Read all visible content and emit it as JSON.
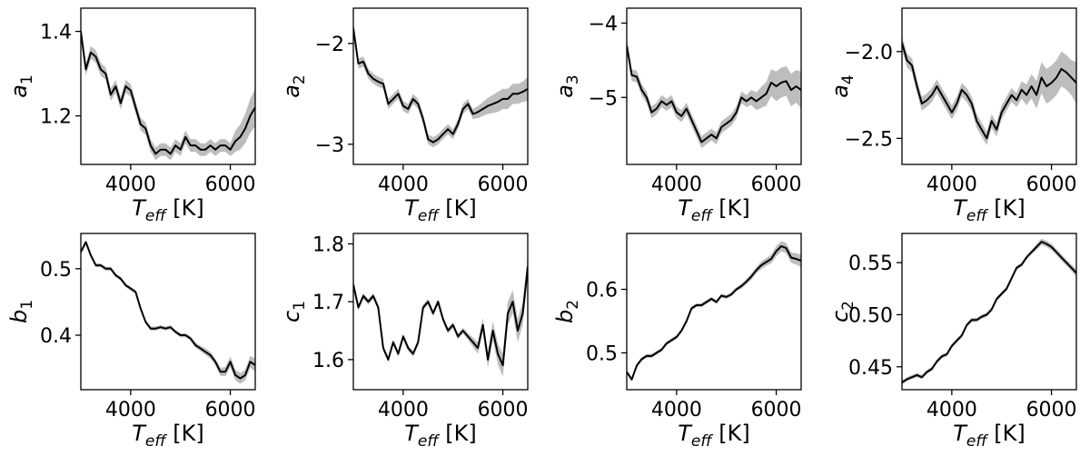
{
  "chart_data": [
    {
      "type": "line",
      "ylabel": "a",
      "ylabel_sub": "1",
      "xlabel": "T",
      "xlabel_sub": "eff",
      "xlabel_unit": " [K]",
      "xlim": [
        3000,
        6500
      ],
      "ylim": [
        1.085,
        1.455
      ],
      "xticks": [
        4000,
        6000
      ],
      "yticks": [
        1.2,
        1.4
      ],
      "ytick_labels": [
        "1.2",
        "1.4"
      ],
      "x": [
        3000,
        3100,
        3200,
        3300,
        3400,
        3500,
        3600,
        3700,
        3800,
        3900,
        4000,
        4100,
        4200,
        4300,
        4400,
        4500,
        4600,
        4700,
        4800,
        4900,
        5000,
        5100,
        5200,
        5300,
        5400,
        5500,
        5600,
        5700,
        5800,
        5900,
        6000,
        6100,
        6200,
        6300,
        6400,
        6500
      ],
      "y": [
        1.4,
        1.31,
        1.35,
        1.34,
        1.31,
        1.3,
        1.25,
        1.27,
        1.23,
        1.27,
        1.26,
        1.22,
        1.18,
        1.17,
        1.13,
        1.11,
        1.12,
        1.12,
        1.11,
        1.13,
        1.12,
        1.15,
        1.13,
        1.13,
        1.12,
        1.12,
        1.13,
        1.12,
        1.13,
        1.13,
        1.12,
        1.14,
        1.15,
        1.17,
        1.2,
        1.22
      ],
      "err": [
        0.015,
        0.015,
        0.015,
        0.015,
        0.015,
        0.015,
        0.015,
        0.015,
        0.015,
        0.015,
        0.015,
        0.015,
        0.015,
        0.015,
        0.015,
        0.015,
        0.015,
        0.015,
        0.015,
        0.015,
        0.015,
        0.015,
        0.015,
        0.015,
        0.015,
        0.015,
        0.015,
        0.015,
        0.015,
        0.015,
        0.015,
        0.025,
        0.03,
        0.035,
        0.04,
        0.045
      ]
    },
    {
      "type": "line",
      "ylabel": "a",
      "ylabel_sub": "2",
      "xlabel": "T",
      "xlabel_sub": "eff",
      "xlabel_unit": " [K]",
      "xlim": [
        3000,
        6500
      ],
      "ylim": [
        -3.2,
        -1.65
      ],
      "xticks": [
        4000,
        6000
      ],
      "yticks": [
        -3,
        -2
      ],
      "ytick_labels": [
        "−3",
        "−2"
      ],
      "x": [
        3000,
        3100,
        3200,
        3300,
        3400,
        3500,
        3600,
        3700,
        3800,
        3900,
        4000,
        4100,
        4200,
        4300,
        4400,
        4500,
        4600,
        4700,
        4800,
        4900,
        5000,
        5100,
        5200,
        5300,
        5400,
        5500,
        5600,
        5700,
        5800,
        5900,
        6000,
        6100,
        6200,
        6300,
        6400,
        6500
      ],
      "y": [
        -1.85,
        -2.2,
        -2.18,
        -2.3,
        -2.35,
        -2.38,
        -2.4,
        -2.6,
        -2.55,
        -2.5,
        -2.62,
        -2.65,
        -2.55,
        -2.6,
        -2.75,
        -2.95,
        -2.98,
        -2.95,
        -2.9,
        -2.85,
        -2.9,
        -2.8,
        -2.65,
        -2.6,
        -2.7,
        -2.68,
        -2.65,
        -2.62,
        -2.6,
        -2.58,
        -2.55,
        -2.55,
        -2.5,
        -2.5,
        -2.48,
        -2.45
      ],
      "err": [
        0.05,
        0.05,
        0.05,
        0.05,
        0.05,
        0.05,
        0.05,
        0.05,
        0.05,
        0.05,
        0.05,
        0.05,
        0.05,
        0.05,
        0.05,
        0.05,
        0.05,
        0.05,
        0.05,
        0.05,
        0.05,
        0.05,
        0.05,
        0.05,
        0.05,
        0.06,
        0.07,
        0.08,
        0.09,
        0.1,
        0.1,
        0.1,
        0.1,
        0.1,
        0.1,
        0.12
      ]
    },
    {
      "type": "line",
      "ylabel": "a",
      "ylabel_sub": "3",
      "xlabel": "T",
      "xlabel_sub": "eff",
      "xlabel_unit": " [K]",
      "xlim": [
        3000,
        6500
      ],
      "ylim": [
        -5.9,
        -3.8
      ],
      "xticks": [
        4000,
        6000
      ],
      "yticks": [
        -5,
        -4
      ],
      "ytick_labels": [
        "−5",
        "−4"
      ],
      "x": [
        3000,
        3100,
        3200,
        3300,
        3400,
        3500,
        3600,
        3700,
        3800,
        3900,
        4000,
        4100,
        4200,
        4300,
        4400,
        4500,
        4600,
        4700,
        4800,
        4900,
        5000,
        5100,
        5200,
        5300,
        5400,
        5500,
        5600,
        5700,
        5800,
        5900,
        6000,
        6100,
        6200,
        6300,
        6400,
        6500
      ],
      "y": [
        -4.3,
        -4.7,
        -4.72,
        -4.9,
        -5.0,
        -5.2,
        -5.15,
        -5.05,
        -5.1,
        -5.05,
        -5.2,
        -5.25,
        -5.15,
        -5.3,
        -5.45,
        -5.6,
        -5.55,
        -5.5,
        -5.55,
        -5.4,
        -5.35,
        -5.3,
        -5.2,
        -5.0,
        -5.05,
        -5.0,
        -5.05,
        -5.0,
        -4.95,
        -4.8,
        -4.85,
        -4.8,
        -4.78,
        -4.9,
        -4.85,
        -4.9
      ],
      "err": [
        0.08,
        0.08,
        0.08,
        0.08,
        0.08,
        0.08,
        0.08,
        0.08,
        0.08,
        0.08,
        0.08,
        0.08,
        0.08,
        0.08,
        0.08,
        0.08,
        0.08,
        0.08,
        0.08,
        0.08,
        0.08,
        0.08,
        0.08,
        0.08,
        0.08,
        0.1,
        0.12,
        0.14,
        0.16,
        0.18,
        0.2,
        0.2,
        0.2,
        0.22,
        0.22,
        0.25
      ]
    },
    {
      "type": "line",
      "ylabel": "a",
      "ylabel_sub": "4",
      "xlabel": "T",
      "xlabel_sub": "eff",
      "xlabel_unit": " [K]",
      "xlim": [
        3000,
        6500
      ],
      "ylim": [
        -2.65,
        -1.75
      ],
      "xticks": [
        4000,
        6000
      ],
      "yticks": [
        -2.5,
        -2.0
      ],
      "ytick_labels": [
        "−2.5",
        "−2.0"
      ],
      "x": [
        3000,
        3100,
        3200,
        3300,
        3400,
        3500,
        3600,
        3700,
        3800,
        3900,
        4000,
        4100,
        4200,
        4300,
        4400,
        4500,
        4600,
        4700,
        4800,
        4900,
        5000,
        5100,
        5200,
        5300,
        5400,
        5500,
        5600,
        5700,
        5800,
        5900,
        6000,
        6100,
        6200,
        6300,
        6400,
        6500
      ],
      "y": [
        -1.95,
        -2.05,
        -2.08,
        -2.2,
        -2.3,
        -2.28,
        -2.25,
        -2.2,
        -2.25,
        -2.3,
        -2.35,
        -2.3,
        -2.22,
        -2.25,
        -2.3,
        -2.4,
        -2.45,
        -2.5,
        -2.4,
        -2.45,
        -2.35,
        -2.3,
        -2.25,
        -2.28,
        -2.22,
        -2.25,
        -2.2,
        -2.25,
        -2.15,
        -2.2,
        -2.18,
        -2.15,
        -2.1,
        -2.12,
        -2.15,
        -2.18
      ],
      "err": [
        0.04,
        0.04,
        0.04,
        0.04,
        0.04,
        0.04,
        0.04,
        0.04,
        0.04,
        0.04,
        0.04,
        0.04,
        0.04,
        0.04,
        0.04,
        0.04,
        0.04,
        0.04,
        0.04,
        0.04,
        0.04,
        0.04,
        0.04,
        0.04,
        0.05,
        0.06,
        0.07,
        0.08,
        0.09,
        0.1,
        0.1,
        0.1,
        0.1,
        0.1,
        0.1,
        0.12
      ]
    },
    {
      "type": "line",
      "ylabel": "b",
      "ylabel_sub": "1",
      "xlabel": "T",
      "xlabel_sub": "eff",
      "xlabel_unit": " [K]",
      "xlim": [
        3000,
        6500
      ],
      "ylim": [
        0.318,
        0.553
      ],
      "xticks": [
        4000,
        6000
      ],
      "yticks": [
        0.4,
        0.5
      ],
      "ytick_labels": [
        "0.4",
        "0.5"
      ],
      "x": [
        3000,
        3100,
        3200,
        3300,
        3400,
        3500,
        3600,
        3700,
        3800,
        3900,
        4000,
        4100,
        4200,
        4300,
        4400,
        4500,
        4600,
        4700,
        4800,
        4900,
        5000,
        5100,
        5200,
        5300,
        5400,
        5500,
        5600,
        5700,
        5800,
        5900,
        6000,
        6100,
        6200,
        6300,
        6400,
        6500
      ],
      "y": [
        0.525,
        0.54,
        0.52,
        0.505,
        0.505,
        0.5,
        0.5,
        0.49,
        0.485,
        0.475,
        0.47,
        0.465,
        0.44,
        0.42,
        0.41,
        0.41,
        0.412,
        0.41,
        0.412,
        0.405,
        0.4,
        0.4,
        0.395,
        0.385,
        0.38,
        0.375,
        0.37,
        0.36,
        0.345,
        0.345,
        0.36,
        0.34,
        0.335,
        0.34,
        0.36,
        0.355
      ],
      "err": [
        0.003,
        0.003,
        0.003,
        0.003,
        0.003,
        0.003,
        0.003,
        0.003,
        0.003,
        0.003,
        0.003,
        0.003,
        0.003,
        0.003,
        0.003,
        0.003,
        0.003,
        0.003,
        0.003,
        0.003,
        0.003,
        0.003,
        0.003,
        0.004,
        0.004,
        0.005,
        0.005,
        0.005,
        0.006,
        0.007,
        0.008,
        0.008,
        0.008,
        0.008,
        0.009,
        0.01
      ]
    },
    {
      "type": "line",
      "ylabel": "c",
      "ylabel_sub": "1",
      "xlabel": "T",
      "xlabel_sub": "eff",
      "xlabel_unit": " [K]",
      "xlim": [
        3000,
        6500
      ],
      "ylim": [
        1.548,
        1.818
      ],
      "xticks": [
        4000,
        6000
      ],
      "yticks": [
        1.6,
        1.7,
        1.8
      ],
      "ytick_labels": [
        "1.6",
        "1.7",
        "1.8"
      ],
      "x": [
        3000,
        3100,
        3200,
        3300,
        3400,
        3500,
        3600,
        3700,
        3800,
        3900,
        4000,
        4100,
        4200,
        4300,
        4400,
        4500,
        4600,
        4700,
        4800,
        4900,
        5000,
        5100,
        5200,
        5300,
        5400,
        5500,
        5600,
        5700,
        5800,
        5900,
        6000,
        6100,
        6200,
        6300,
        6400,
        6500
      ],
      "y": [
        1.73,
        1.69,
        1.71,
        1.7,
        1.71,
        1.69,
        1.62,
        1.6,
        1.63,
        1.61,
        1.64,
        1.62,
        1.61,
        1.63,
        1.69,
        1.7,
        1.68,
        1.7,
        1.67,
        1.65,
        1.66,
        1.64,
        1.65,
        1.64,
        1.63,
        1.62,
        1.66,
        1.6,
        1.65,
        1.61,
        1.59,
        1.68,
        1.7,
        1.65,
        1.68,
        1.76
      ],
      "err": [
        0.005,
        0.005,
        0.005,
        0.005,
        0.005,
        0.005,
        0.005,
        0.005,
        0.005,
        0.005,
        0.005,
        0.005,
        0.005,
        0.005,
        0.005,
        0.005,
        0.005,
        0.005,
        0.005,
        0.005,
        0.005,
        0.005,
        0.005,
        0.006,
        0.008,
        0.01,
        0.012,
        0.014,
        0.016,
        0.018,
        0.02,
        0.02,
        0.02,
        0.02,
        0.02,
        0.02
      ]
    },
    {
      "type": "line",
      "ylabel": "b",
      "ylabel_sub": "2",
      "xlabel": "T",
      "xlabel_sub": "eff",
      "xlabel_unit": " [K]",
      "xlim": [
        3000,
        6500
      ],
      "ylim": [
        0.442,
        0.688
      ],
      "xticks": [
        4000,
        6000
      ],
      "yticks": [
        0.5,
        0.6
      ],
      "ytick_labels": [
        "0.5",
        "0.6"
      ],
      "x": [
        3000,
        3100,
        3200,
        3300,
        3400,
        3500,
        3600,
        3700,
        3800,
        3900,
        4000,
        4100,
        4200,
        4300,
        4400,
        4500,
        4600,
        4700,
        4800,
        4900,
        5000,
        5100,
        5200,
        5300,
        5400,
        5500,
        5600,
        5700,
        5800,
        5900,
        6000,
        6100,
        6200,
        6300,
        6400,
        6500
      ],
      "y": [
        0.47,
        0.458,
        0.48,
        0.49,
        0.495,
        0.495,
        0.5,
        0.505,
        0.515,
        0.52,
        0.525,
        0.535,
        0.55,
        0.57,
        0.575,
        0.575,
        0.58,
        0.585,
        0.58,
        0.59,
        0.588,
        0.592,
        0.6,
        0.605,
        0.612,
        0.62,
        0.63,
        0.638,
        0.643,
        0.648,
        0.66,
        0.668,
        0.665,
        0.65,
        0.648,
        0.645
      ],
      "err": [
        0.003,
        0.003,
        0.003,
        0.003,
        0.003,
        0.003,
        0.003,
        0.003,
        0.003,
        0.003,
        0.003,
        0.003,
        0.003,
        0.003,
        0.003,
        0.003,
        0.003,
        0.003,
        0.003,
        0.003,
        0.003,
        0.003,
        0.003,
        0.004,
        0.004,
        0.005,
        0.005,
        0.006,
        0.006,
        0.007,
        0.008,
        0.008,
        0.008,
        0.008,
        0.009,
        0.01
      ]
    },
    {
      "type": "line",
      "ylabel": "c",
      "ylabel_sub": "2",
      "xlabel": "T",
      "xlabel_sub": "eff",
      "xlabel_unit": " [K]",
      "xlim": [
        3000,
        6500
      ],
      "ylim": [
        0.428,
        0.578
      ],
      "xticks": [
        4000,
        6000
      ],
      "yticks": [
        0.45,
        0.5,
        0.55
      ],
      "ytick_labels": [
        "0.45",
        "0.50",
        "0.55"
      ],
      "x": [
        3000,
        3100,
        3200,
        3300,
        3400,
        3500,
        3600,
        3700,
        3800,
        3900,
        4000,
        4100,
        4200,
        4300,
        4400,
        4500,
        4600,
        4700,
        4800,
        4900,
        5000,
        5100,
        5200,
        5300,
        5400,
        5500,
        5600,
        5700,
        5800,
        5900,
        6000,
        6100,
        6200,
        6300,
        6400,
        6500
      ],
      "y": [
        0.435,
        0.438,
        0.44,
        0.442,
        0.44,
        0.445,
        0.448,
        0.455,
        0.46,
        0.462,
        0.47,
        0.475,
        0.48,
        0.49,
        0.495,
        0.495,
        0.498,
        0.5,
        0.505,
        0.515,
        0.52,
        0.525,
        0.535,
        0.545,
        0.548,
        0.555,
        0.56,
        0.565,
        0.57,
        0.568,
        0.565,
        0.56,
        0.555,
        0.55,
        0.545,
        0.54
      ],
      "err": [
        0.002,
        0.002,
        0.002,
        0.002,
        0.002,
        0.002,
        0.002,
        0.002,
        0.002,
        0.002,
        0.002,
        0.002,
        0.002,
        0.002,
        0.002,
        0.002,
        0.002,
        0.002,
        0.002,
        0.002,
        0.002,
        0.002,
        0.002,
        0.002,
        0.002,
        0.002,
        0.002,
        0.003,
        0.003,
        0.003,
        0.003,
        0.003,
        0.003,
        0.003,
        0.003,
        0.004
      ]
    }
  ]
}
